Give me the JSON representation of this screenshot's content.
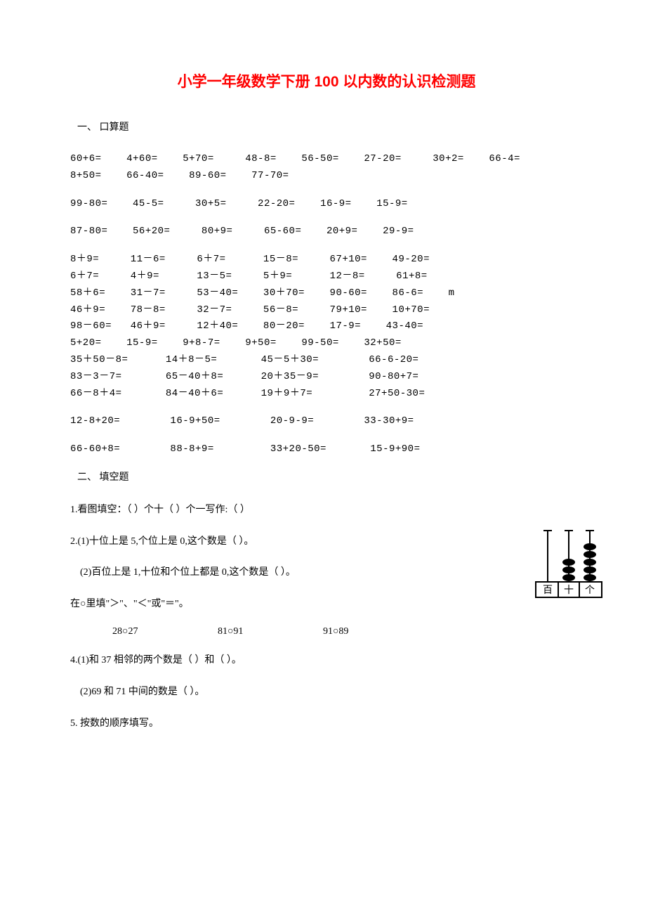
{
  "title": "小学一年级数学下册 100 以内数的认识检测题",
  "section1_label": "一、 口算题",
  "arith": {
    "r1": [
      "60+6=",
      "4+60=",
      "5+70=",
      "48-8=",
      "56-50=",
      "27-20=",
      "30+2=",
      "66-4="
    ],
    "r2": [
      "8+50=",
      "66-40=",
      "89-60=",
      "77-70="
    ],
    "r3": [
      "99-80=",
      "45-5=",
      "30+5=",
      "22-20=",
      "16-9=",
      "15-9="
    ],
    "r4": [
      "87-80=",
      "56+20=",
      "80+9=",
      "65-60=",
      "20+9=",
      "29-9="
    ],
    "r5": [
      "8＋9=",
      "11－6=",
      "6＋7=",
      "15－8=",
      "67+10=",
      "49-20="
    ],
    "r6": [
      "6＋7=",
      "4＋9=",
      "13－5=",
      "5＋9=",
      "12－8=",
      "61+8="
    ],
    "r7": [
      "58＋6=",
      "31－7=",
      "53－40=",
      "30＋70=",
      "90-60=",
      "86-6=",
      "m"
    ],
    "r8": [
      "46＋9=",
      "78－8=",
      "32－7=",
      "56－8=",
      "79+10=",
      "10+70="
    ],
    "r9": [
      "98－60=",
      "46＋9=",
      "12＋40=",
      "80－20=",
      "17-9=",
      "43-40="
    ],
    "r10": [
      "5+20=",
      "15-9=",
      "9+8-7=",
      "9+50=",
      "99-50=",
      "32+50="
    ],
    "r11": [
      "35＋50－8=",
      "14＋8－5=",
      "45－5＋30=",
      "66-6-20="
    ],
    "r12": [
      "83－3－7=",
      "65－40＋8=",
      "20＋35－9=",
      "90-80+7="
    ],
    "r13": [
      "66－8＋4=",
      "84－40＋6=",
      "19＋9＋7=",
      "27+50-30="
    ],
    "r14": [
      "12-8+20=",
      "16-9+50=",
      "20-9-9=",
      "33-30+9="
    ],
    "r15": [
      "66-60+8=",
      "88-8+9=",
      "33+20-50=",
      "15-9+90="
    ]
  },
  "section2_label": "二、 填空题",
  "fill": {
    "q1": "1.看图填空：（  ）个十（  ）个一写作:（    ）",
    "q2a": "2.(1)十位上是 5,个位上是 0,这个数是（    ）。",
    "q2b": "(2)百位上是 1,十位和个位上都是 0,这个数是（    ）。",
    "q3": "在○里填\"＞\"、\"＜\"或\"＝\"。",
    "q3a": "28○27",
    "q3b": "81○91",
    "q3c": "91○89",
    "q4a": "4.(1)和 37 相邻的两个数是（    ）和（    ）。",
    "q4b": "(2)69 和 71 中间的数是（    ）。",
    "q5": "5. 按数的顺序填写。"
  },
  "abacus": {
    "labels": [
      "百",
      "十",
      "个"
    ],
    "beads": [
      0,
      3,
      5
    ],
    "bead_color": "#000000",
    "frame_color": "#000000"
  },
  "colors": {
    "title": "#ff0000",
    "text": "#000000",
    "background": "#ffffff"
  }
}
